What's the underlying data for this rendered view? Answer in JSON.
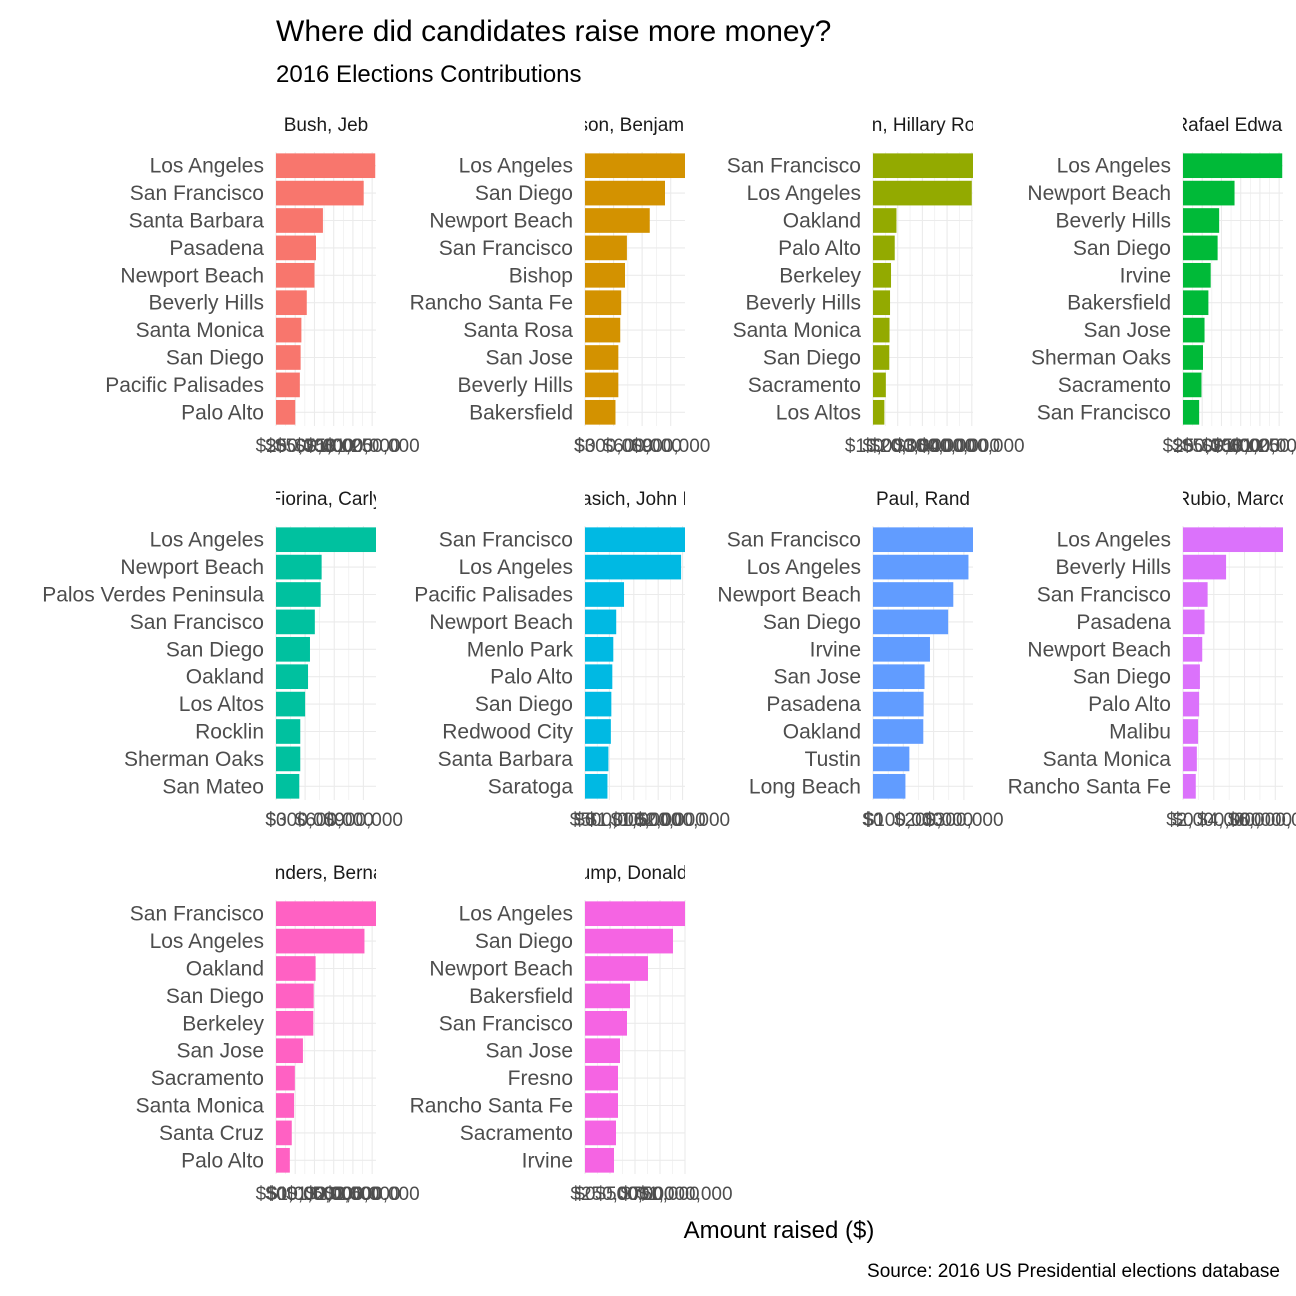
{
  "chart_data": {
    "type": "bar",
    "orientation": "horizontal",
    "facets": "4 columns, free x-scale per panel",
    "title": "Where did candidates raise more money?",
    "subtitle": "2016 Elections Contributions",
    "xlabel": "Amount raised ($)",
    "caption": "Source: 2016 US Presidential elections database",
    "grid": true,
    "legend": "none",
    "panels": [
      {
        "strip_label": "Bush, Jeb",
        "color": "#F8766D",
        "xlim": [
          0,
          1300000
        ],
        "ticks": [
          0,
          250000,
          500000,
          750000,
          1000000,
          1250000
        ],
        "tick_labels": [
          "$0",
          "$250,000",
          "$500,000",
          "$750,000",
          "$1,000,000",
          "$1,250,000"
        ],
        "categories": [
          "Los Angeles",
          "San Francisco",
          "Santa Barbara",
          "Pasadena",
          "Newport Beach",
          "Beverly Hills",
          "Santa Monica",
          "San Diego",
          "Pacific Palisades",
          "Palo Alto"
        ],
        "values": [
          1290000,
          1140000,
          610000,
          520000,
          500000,
          400000,
          330000,
          320000,
          310000,
          250000
        ]
      },
      {
        "strip_label": "Carson, Benjamin S.",
        "color": "#D39200",
        "xlim": [
          0,
          1050000
        ],
        "ticks": [
          0,
          300000,
          600000,
          900000
        ],
        "tick_labels": [
          "$0",
          "$300,000",
          "$600,000",
          "$900,000"
        ],
        "categories": [
          "Los Angeles",
          "San Diego",
          "Newport Beach",
          "San Francisco",
          "Bishop",
          "Rancho Santa Fe",
          "Santa Rosa",
          "San Jose",
          "Beverly Hills",
          "Bakersfield"
        ],
        "values": [
          1050000,
          840000,
          680000,
          440000,
          420000,
          380000,
          370000,
          350000,
          350000,
          320000
        ]
      },
      {
        "strip_label": "Clinton, Hillary Rodham",
        "color": "#93AA00",
        "xlim": [
          0,
          40500000
        ],
        "ticks": [
          0,
          10000000,
          20000000,
          30000000,
          40000000
        ],
        "tick_labels": [
          "$0",
          "$10,000,000",
          "$20,000,000",
          "$30,000,000",
          "$40,000,000"
        ],
        "categories": [
          "San Francisco",
          "Los Angeles",
          "Oakland",
          "Palo Alto",
          "Berkeley",
          "Beverly Hills",
          "Santa Monica",
          "San Diego",
          "Sacramento",
          "Los Altos"
        ],
        "values": [
          40500000,
          40000000,
          9500000,
          8800000,
          7300000,
          6900000,
          6700000,
          6600000,
          5200000,
          4600000
        ]
      },
      {
        "strip_label": "Cruz, Rafael Edward 'Ted'",
        "color": "#00BA38",
        "xlim": [
          0,
          1300000
        ],
        "ticks": [
          0,
          250000,
          500000,
          750000,
          1000000,
          1250000
        ],
        "tick_labels": [
          "$0",
          "$250,000",
          "$500,000",
          "$750,000",
          "$1,000,000",
          "$1,250,000"
        ],
        "categories": [
          "Los Angeles",
          "Newport Beach",
          "Beverly Hills",
          "San Diego",
          "Irvine",
          "Bakersfield",
          "San Jose",
          "Sherman Oaks",
          "Sacramento",
          "San Francisco"
        ],
        "values": [
          1290000,
          670000,
          470000,
          450000,
          360000,
          330000,
          280000,
          260000,
          240000,
          210000
        ]
      },
      {
        "strip_label": "Fiorina, Carly",
        "color": "#00C19F",
        "xlim": [
          0,
          1030000
        ],
        "ticks": [
          0,
          300000,
          600000,
          900000
        ],
        "tick_labels": [
          "$0",
          "$300,000",
          "$600,000",
          "$900,000"
        ],
        "categories": [
          "Los Angeles",
          "Newport Beach",
          "Palos Verdes Peninsula",
          "San Francisco",
          "San Diego",
          "Oakland",
          "Los Altos",
          "Rocklin",
          "Sherman Oaks",
          "San Mateo"
        ],
        "values": [
          1030000,
          470000,
          460000,
          400000,
          350000,
          330000,
          300000,
          250000,
          250000,
          240000
        ]
      },
      {
        "strip_label": "Kasich, John R.",
        "color": "#00B9E3",
        "xlim": [
          0,
          2050000
        ],
        "ticks": [
          0,
          500000,
          1000000,
          1500000,
          2000000
        ],
        "tick_labels": [
          "$0",
          "$500,000",
          "$1,000,000",
          "$1,500,000",
          "$2,000,000"
        ],
        "categories": [
          "San Francisco",
          "Los Angeles",
          "Pacific Palisades",
          "Newport Beach",
          "Menlo Park",
          "Palo Alto",
          "San Diego",
          "Redwood City",
          "Santa Barbara",
          "Saratoga"
        ],
        "values": [
          2050000,
          1970000,
          800000,
          640000,
          580000,
          560000,
          540000,
          530000,
          480000,
          460000
        ]
      },
      {
        "strip_label": "Paul, Rand",
        "color": "#619CFF",
        "xlim": [
          0,
          330000
        ],
        "ticks": [
          0,
          100000,
          200000,
          300000
        ],
        "tick_labels": [
          "$0",
          "$100,000",
          "$200,000",
          "$300,000"
        ],
        "categories": [
          "San Francisco",
          "Los Angeles",
          "Newport Beach",
          "San Diego",
          "Irvine",
          "San Jose",
          "Pasadena",
          "Oakland",
          "Tustin",
          "Long Beach"
        ],
        "values": [
          330000,
          315000,
          265000,
          248000,
          188000,
          170000,
          167000,
          166000,
          120000,
          107000
        ]
      },
      {
        "strip_label": "Rubio, Marco",
        "color": "#DB72FB",
        "xlim": [
          0,
          6500000
        ],
        "ticks": [
          0,
          2000000,
          4000000,
          6000000
        ],
        "tick_labels": [
          "$0",
          "$2,000,000",
          "$4,000,000",
          "$6,000,000"
        ],
        "categories": [
          "Los Angeles",
          "Beverly Hills",
          "San Francisco",
          "Pasadena",
          "Newport Beach",
          "San Diego",
          "Palo Alto",
          "Malibu",
          "Santa Monica",
          "Rancho Santa Fe"
        ],
        "values": [
          6500000,
          2800000,
          1600000,
          1400000,
          1250000,
          1100000,
          1050000,
          980000,
          900000,
          830000
        ]
      },
      {
        "strip_label": "Sanders, Bernard",
        "color": "#FF61C3",
        "xlim": [
          0,
          2600000
        ],
        "ticks": [
          0,
          500000,
          1000000,
          1500000,
          2000000,
          2500000
        ],
        "tick_labels": [
          "$0",
          "$500,000",
          "$1,000,000",
          "$1,500,000",
          "$2,000,000",
          "$2,500,000"
        ],
        "categories": [
          "San Francisco",
          "Los Angeles",
          "Oakland",
          "San Diego",
          "Berkeley",
          "San Jose",
          "Sacramento",
          "Santa Monica",
          "Santa Cruz",
          "Palo Alto"
        ],
        "values": [
          2600000,
          2300000,
          1030000,
          980000,
          970000,
          700000,
          490000,
          470000,
          410000,
          360000
        ]
      },
      {
        "strip_label": "Trump, Donald J.",
        "color": "#F564E3",
        "xlim": [
          0,
          1000000
        ],
        "ticks": [
          0,
          250000,
          500000,
          750000,
          1000000
        ],
        "tick_labels": [
          "$0",
          "$250,000",
          "$500,000",
          "$750,000",
          "$1,000,000"
        ],
        "categories": [
          "Los Angeles",
          "San Diego",
          "Newport Beach",
          "Bakersfield",
          "San Francisco",
          "San Jose",
          "Fresno",
          "Rancho Santa Fe",
          "Sacramento",
          "Irvine"
        ],
        "values": [
          1000000,
          880000,
          630000,
          450000,
          420000,
          350000,
          330000,
          330000,
          310000,
          290000
        ]
      }
    ]
  }
}
